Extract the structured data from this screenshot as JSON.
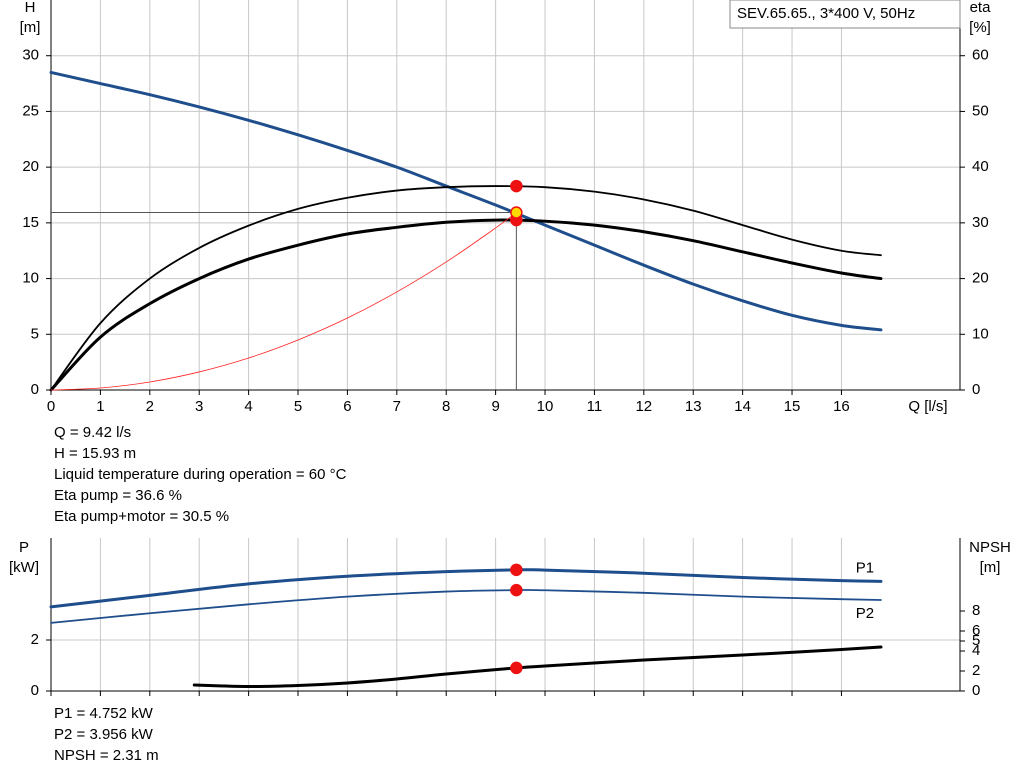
{
  "chart_data": [
    {
      "type": "line",
      "caption": "SEV.65.65., 3*400 V, 50Hz",
      "ylabel": [
        "H",
        "[m]"
      ],
      "y2label": [
        "eta",
        "[%]"
      ],
      "xlabel": "Q [l/s]",
      "xlim": [
        0,
        18.4
      ],
      "xticks": [
        0,
        1,
        2,
        3,
        4,
        5,
        6,
        7,
        8,
        9,
        10,
        11,
        12,
        13,
        14,
        15,
        16
      ],
      "xtick_labels": true,
      "ylim": [
        0,
        35
      ],
      "yticks": [
        0,
        5,
        10,
        15,
        20,
        25,
        30
      ],
      "y2lim": [
        0,
        70
      ],
      "y2ticks": [
        0,
        10,
        20,
        30,
        40,
        50,
        60
      ],
      "grid": true,
      "series": [
        {
          "color": "#1f4e8c",
          "line_width": 3,
          "axis": "y",
          "x": [
            0,
            1,
            2,
            3,
            4,
            5,
            6,
            7,
            8,
            9,
            10,
            11,
            12,
            13,
            14,
            15,
            16,
            16.8
          ],
          "values": [
            28.5,
            27.5,
            26.5,
            25.4,
            24.2,
            22.9,
            21.5,
            20,
            18.3,
            16.6,
            14.8,
            13,
            11.2,
            9.5,
            8,
            6.7,
            5.8,
            5.4
          ]
        },
        {
          "color": "#000000",
          "line_width": 1.8,
          "axis": "y2",
          "x": [
            0,
            1,
            2,
            3,
            4,
            5,
            6,
            7,
            8,
            9,
            10,
            11,
            12,
            13,
            14,
            15,
            16,
            16.8
          ],
          "values": [
            0,
            12,
            20,
            25.5,
            29.5,
            32.5,
            34.5,
            35.8,
            36.4,
            36.6,
            36.4,
            35.6,
            34.2,
            32.2,
            29.6,
            27,
            25,
            24.2
          ]
        },
        {
          "color": "#000000",
          "line_width": 3,
          "axis": "y2",
          "x": [
            0,
            1,
            2,
            3,
            4,
            5,
            6,
            7,
            8,
            9,
            10,
            11,
            12,
            13,
            14,
            15,
            16,
            16.8
          ],
          "values": [
            0,
            9.5,
            15.5,
            20,
            23.5,
            26,
            28,
            29.2,
            30.1,
            30.5,
            30.3,
            29.6,
            28.4,
            26.8,
            24.8,
            22.8,
            21,
            20
          ]
        },
        {
          "color": "#ff2020",
          "line_width": 0.8,
          "axis": "y",
          "x": [
            0,
            1,
            2,
            3,
            4,
            5,
            6,
            7,
            8,
            9,
            9.42
          ],
          "values": [
            0,
            0.18,
            0.72,
            1.62,
            2.87,
            4.49,
            6.46,
            8.8,
            11.49,
            14.54,
            15.93
          ]
        }
      ],
      "operating_point": {
        "x": 9.42,
        "y": 15.93
      },
      "markers": [
        {
          "x": 9.42,
          "y": 36.6,
          "axis": "y2",
          "color": "#ee1111"
        },
        {
          "x": 9.42,
          "y": 30.5,
          "axis": "y2",
          "color": "#ee1111"
        },
        {
          "x": 9.42,
          "y": 15.93,
          "axis": "y",
          "color": "#ffd800"
        }
      ],
      "notes": [
        "Q = 9.42 l/s",
        "H = 15.93 m",
        "Liquid temperature during operation = 60 °C",
        "Eta pump = 36.6 %",
        "Eta pump+motor = 30.5 %"
      ]
    },
    {
      "type": "line",
      "ylabel": [
        "P",
        "[kW]"
      ],
      "y2label": [
        "NPSH",
        "[m]"
      ],
      "xlim": [
        0,
        18.4
      ],
      "xticks": [
        0,
        1,
        2,
        3,
        4,
        5,
        6,
        7,
        8,
        9,
        10,
        11,
        12,
        13,
        14,
        15,
        16
      ],
      "xtick_labels": false,
      "ylim": [
        0,
        6
      ],
      "yticks": [
        0,
        2
      ],
      "y2lim": [
        0,
        15.3
      ],
      "y2ticks": [
        0,
        2,
        4,
        5,
        6,
        8
      ],
      "grid": true,
      "series": [
        {
          "name": "P1",
          "color": "#1f4e8c",
          "line_width": 3,
          "axis": "y",
          "x": [
            0,
            2,
            4,
            6,
            8,
            9.42,
            10,
            12,
            14,
            16,
            16.8
          ],
          "values": [
            3.3,
            3.75,
            4.2,
            4.5,
            4.68,
            4.752,
            4.74,
            4.62,
            4.45,
            4.33,
            4.3
          ]
        },
        {
          "name": "P2",
          "color": "#1f4e8c",
          "line_width": 1.8,
          "axis": "y",
          "x": [
            0,
            2,
            4,
            6,
            8,
            9.42,
            10,
            12,
            14,
            16,
            16.8
          ],
          "values": [
            2.67,
            3.05,
            3.4,
            3.7,
            3.9,
            3.956,
            3.95,
            3.85,
            3.7,
            3.6,
            3.57
          ]
        },
        {
          "color": "#000000",
          "line_width": 3,
          "axis": "y2",
          "x": [
            2.9,
            4,
            5,
            6,
            7,
            8,
            9.42,
            10,
            12,
            14,
            16,
            16.8
          ],
          "values": [
            0.6,
            0.45,
            0.55,
            0.8,
            1.2,
            1.7,
            2.31,
            2.5,
            3.1,
            3.6,
            4.15,
            4.4
          ]
        }
      ],
      "markers": [
        {
          "x": 9.42,
          "y": 4.752,
          "axis": "y",
          "color": "#ee1111"
        },
        {
          "x": 9.42,
          "y": 3.956,
          "axis": "y",
          "color": "#ee1111"
        },
        {
          "x": 9.42,
          "y": 2.31,
          "axis": "y2",
          "color": "#ee1111"
        }
      ],
      "notes": [
        "P1 = 4.752 kW",
        "P2 = 3.956 kW",
        "NPSH = 2.31 m"
      ]
    }
  ]
}
